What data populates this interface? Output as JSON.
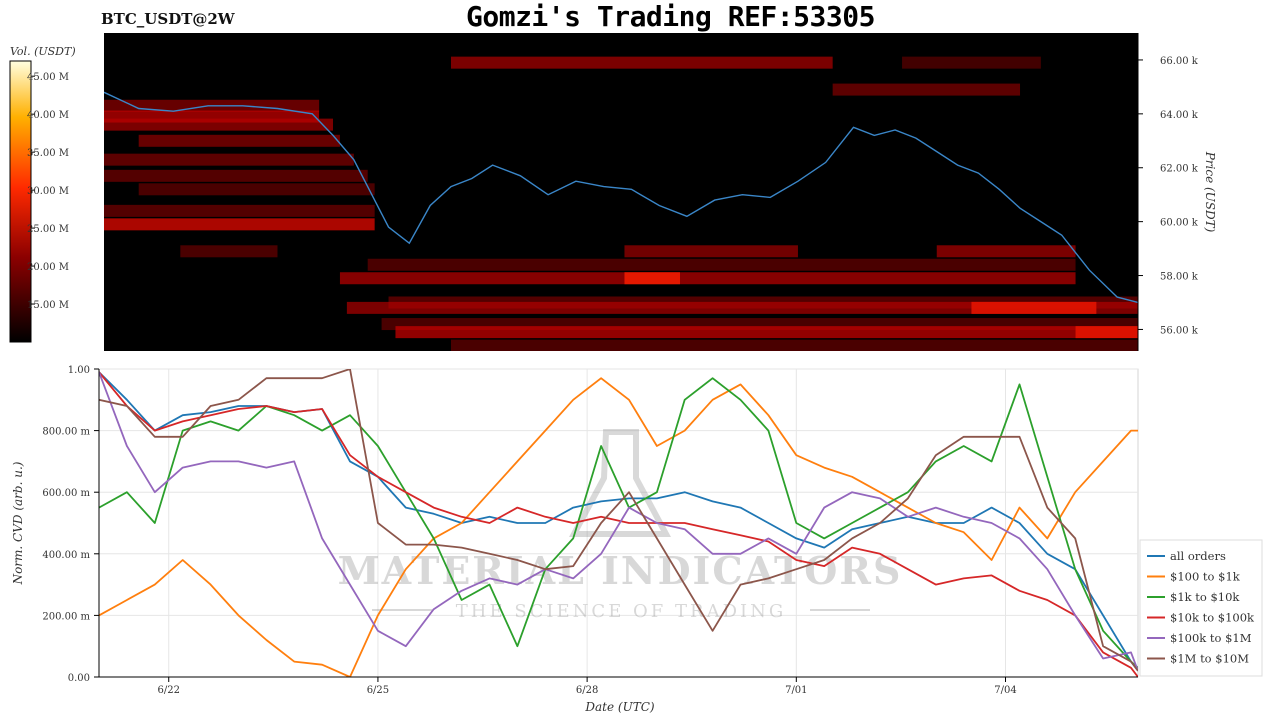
{
  "header": {
    "pair": "BTC_USDT@2W",
    "title": "Gomzi's Trading REF:53305"
  },
  "colorbar": {
    "label": "Vol. (USDT)",
    "ticks": [
      "45.00 M",
      "40.00 M",
      "35.00 M",
      "30.00 M",
      "25.00 M",
      "20.00 M",
      "15.00 M"
    ]
  },
  "watermark": {
    "line1": "MATERIAL INDICATORS",
    "line2": "THE SCIENCE OF TRADING"
  },
  "colors": {
    "heatmap_bg": "#000000",
    "price_line": "#3a86c8",
    "all_orders": "#1f77b4",
    "s100_1k": "#ff7f0e",
    "s1k_10k": "#2ca02c",
    "s10k_100k": "#d62728",
    "s100k_1m": "#9467bd",
    "s1m_10m": "#8c564b"
  },
  "chart_data": [
    {
      "type": "heatmap",
      "ylabel": "Price (USDT)",
      "yticks": [
        "66.00 k",
        "64.00 k",
        "62.00 k",
        "60.00 k",
        "58.00 k",
        "56.00 k"
      ],
      "ylim": [
        55200,
        67000
      ],
      "colorbar_range_musdt": [
        10,
        47
      ],
      "price_series": {
        "x_day_offset_from_6_21": [
          0,
          0.5,
          1,
          1.5,
          2,
          2.5,
          3,
          3.3,
          3.6,
          3.9,
          4.1,
          4.4,
          4.7,
          5,
          5.3,
          5.6,
          6,
          6.4,
          6.8,
          7.2,
          7.6,
          8,
          8.4,
          8.8,
          9.2,
          9.6,
          10,
          10.4,
          10.8,
          11.1,
          11.4,
          11.7,
          12,
          12.3,
          12.6,
          12.9,
          13.2,
          13.5,
          13.8,
          14.2,
          14.6,
          14.9
        ],
        "price": [
          64800,
          64200,
          64100,
          64300,
          64300,
          64200,
          64000,
          63200,
          62300,
          60800,
          59800,
          59200,
          60600,
          61300,
          61600,
          62100,
          61700,
          61000,
          61500,
          61300,
          61200,
          60600,
          60200,
          60800,
          61000,
          60900,
          61500,
          62200,
          63500,
          63200,
          63400,
          63100,
          62600,
          62100,
          61800,
          61200,
          60500,
          60000,
          59500,
          58200,
          57200,
          57000
        ]
      },
      "bands": [
        {
          "price": 65900,
          "x0": 5.0,
          "x1": 10.5,
          "intensity": 0.55
        },
        {
          "price": 65900,
          "x0": 11.5,
          "x1": 13.5,
          "intensity": 0.25
        },
        {
          "price": 64900,
          "x0": 10.5,
          "x1": 13.2,
          "intensity": 0.4
        },
        {
          "price": 64300,
          "x0": 0.0,
          "x1": 3.1,
          "intensity": 0.45
        },
        {
          "price": 63900,
          "x0": 0.0,
          "x1": 3.1,
          "intensity": 0.65
        },
        {
          "price": 63600,
          "x0": 0.0,
          "x1": 3.3,
          "intensity": 0.55
        },
        {
          "price": 63000,
          "x0": 0.5,
          "x1": 3.4,
          "intensity": 0.45
        },
        {
          "price": 62300,
          "x0": 0.0,
          "x1": 3.6,
          "intensity": 0.4
        },
        {
          "price": 61700,
          "x0": 0.0,
          "x1": 3.8,
          "intensity": 0.35
        },
        {
          "price": 61200,
          "x0": 0.5,
          "x1": 3.9,
          "intensity": 0.3
        },
        {
          "price": 60400,
          "x0": 0.0,
          "x1": 3.9,
          "intensity": 0.35
        },
        {
          "price": 59900,
          "x0": 0.0,
          "x1": 3.9,
          "intensity": 0.75
        },
        {
          "price": 58900,
          "x0": 1.1,
          "x1": 2.5,
          "intensity": 0.3
        },
        {
          "price": 58900,
          "x0": 7.5,
          "x1": 10.0,
          "intensity": 0.5
        },
        {
          "price": 58900,
          "x0": 12.0,
          "x1": 14.0,
          "intensity": 0.55
        },
        {
          "price": 58400,
          "x0": 3.8,
          "x1": 14.0,
          "intensity": 0.3
        },
        {
          "price": 57900,
          "x0": 3.4,
          "x1": 14.0,
          "intensity": 0.6
        },
        {
          "price": 57900,
          "x0": 7.5,
          "x1": 8.3,
          "intensity": 0.9
        },
        {
          "price": 57000,
          "x0": 4.1,
          "x1": 14.9,
          "intensity": 0.35
        },
        {
          "price": 56800,
          "x0": 3.5,
          "x1": 14.9,
          "intensity": 0.55
        },
        {
          "price": 56800,
          "x0": 12.5,
          "x1": 14.3,
          "intensity": 0.85
        },
        {
          "price": 56200,
          "x0": 4.0,
          "x1": 14.9,
          "intensity": 0.3
        },
        {
          "price": 55900,
          "x0": 4.2,
          "x1": 14.9,
          "intensity": 0.65
        },
        {
          "price": 55900,
          "x0": 14.0,
          "x1": 14.9,
          "intensity": 0.85
        },
        {
          "price": 55400,
          "x0": 5.0,
          "x1": 14.9,
          "intensity": 0.3
        }
      ]
    },
    {
      "type": "line",
      "xlabel": "Date (UTC)",
      "ylabel": "Norm. CVD (arb. u.)",
      "xticks": [
        "6/22",
        "6/25",
        "6/28",
        "7/01",
        "7/04"
      ],
      "ylim": [
        0,
        1
      ],
      "yticks": [
        "0.00",
        "200.00 m",
        "400.00 m",
        "600.00 m",
        "800.00 m",
        "1.00"
      ],
      "legend_position": "lower-right-outside",
      "x_day_offset_from_6_21": [
        0,
        0.4,
        0.8,
        1.2,
        1.6,
        2,
        2.4,
        2.8,
        3.2,
        3.6,
        4,
        4.4,
        4.8,
        5.2,
        5.6,
        6,
        6.4,
        6.8,
        7.2,
        7.6,
        8,
        8.4,
        8.8,
        9.2,
        9.6,
        10,
        10.4,
        10.8,
        11.2,
        11.6,
        12,
        12.4,
        12.8,
        13.2,
        13.6,
        14,
        14.4,
        14.8,
        14.9
      ],
      "series": [
        {
          "name": "all orders",
          "color_key": "all_orders",
          "values": [
            0.99,
            0.9,
            0.8,
            0.85,
            0.86,
            0.88,
            0.88,
            0.86,
            0.87,
            0.7,
            0.65,
            0.55,
            0.53,
            0.5,
            0.52,
            0.5,
            0.5,
            0.55,
            0.57,
            0.58,
            0.58,
            0.6,
            0.57,
            0.55,
            0.5,
            0.45,
            0.42,
            0.48,
            0.5,
            0.52,
            0.5,
            0.5,
            0.55,
            0.5,
            0.4,
            0.35,
            0.2,
            0.05,
            0.02
          ]
        },
        {
          "name": "$100 to $1k",
          "color_key": "s100_1k",
          "values": [
            0.2,
            0.25,
            0.3,
            0.38,
            0.3,
            0.2,
            0.12,
            0.05,
            0.04,
            0.0,
            0.2,
            0.35,
            0.45,
            0.5,
            0.6,
            0.7,
            0.8,
            0.9,
            0.97,
            0.9,
            0.75,
            0.8,
            0.9,
            0.95,
            0.85,
            0.72,
            0.68,
            0.65,
            0.6,
            0.55,
            0.5,
            0.47,
            0.38,
            0.55,
            0.45,
            0.6,
            0.7,
            0.8,
            0.8
          ]
        },
        {
          "name": "$1k to $10k",
          "color_key": "s1k_10k",
          "values": [
            0.55,
            0.6,
            0.5,
            0.8,
            0.83,
            0.8,
            0.88,
            0.85,
            0.8,
            0.85,
            0.75,
            0.6,
            0.45,
            0.25,
            0.3,
            0.1,
            0.35,
            0.45,
            0.75,
            0.55,
            0.6,
            0.9,
            0.97,
            0.9,
            0.8,
            0.5,
            0.45,
            0.5,
            0.55,
            0.6,
            0.7,
            0.75,
            0.7,
            0.95,
            0.65,
            0.35,
            0.15,
            0.05,
            0.03
          ]
        },
        {
          "name": "$10k to $100k",
          "color_key": "s10k_100k",
          "values": [
            0.99,
            0.88,
            0.8,
            0.83,
            0.85,
            0.87,
            0.88,
            0.86,
            0.87,
            0.72,
            0.65,
            0.6,
            0.55,
            0.52,
            0.5,
            0.55,
            0.52,
            0.5,
            0.52,
            0.5,
            0.5,
            0.5,
            0.48,
            0.46,
            0.44,
            0.38,
            0.36,
            0.42,
            0.4,
            0.35,
            0.3,
            0.32,
            0.33,
            0.28,
            0.25,
            0.2,
            0.08,
            0.03,
            0.0
          ]
        },
        {
          "name": "$100k to $1M",
          "color_key": "s100k_1m",
          "values": [
            0.99,
            0.75,
            0.6,
            0.68,
            0.7,
            0.7,
            0.68,
            0.7,
            0.45,
            0.3,
            0.15,
            0.1,
            0.22,
            0.28,
            0.32,
            0.3,
            0.35,
            0.32,
            0.4,
            0.55,
            0.5,
            0.48,
            0.4,
            0.4,
            0.45,
            0.4,
            0.55,
            0.6,
            0.58,
            0.52,
            0.55,
            0.52,
            0.5,
            0.45,
            0.35,
            0.2,
            0.06,
            0.08,
            0.02
          ]
        },
        {
          "name": "$1M to $10M",
          "color_key": "s1m_10m",
          "values": [
            0.9,
            0.88,
            0.78,
            0.78,
            0.88,
            0.9,
            0.97,
            0.97,
            0.97,
            1.0,
            0.5,
            0.43,
            0.43,
            0.42,
            0.4,
            0.38,
            0.35,
            0.36,
            0.5,
            0.6,
            0.45,
            0.3,
            0.15,
            0.3,
            0.32,
            0.35,
            0.38,
            0.45,
            0.5,
            0.58,
            0.72,
            0.78,
            0.78,
            0.78,
            0.55,
            0.45,
            0.1,
            0.05,
            0.02
          ]
        }
      ]
    }
  ]
}
